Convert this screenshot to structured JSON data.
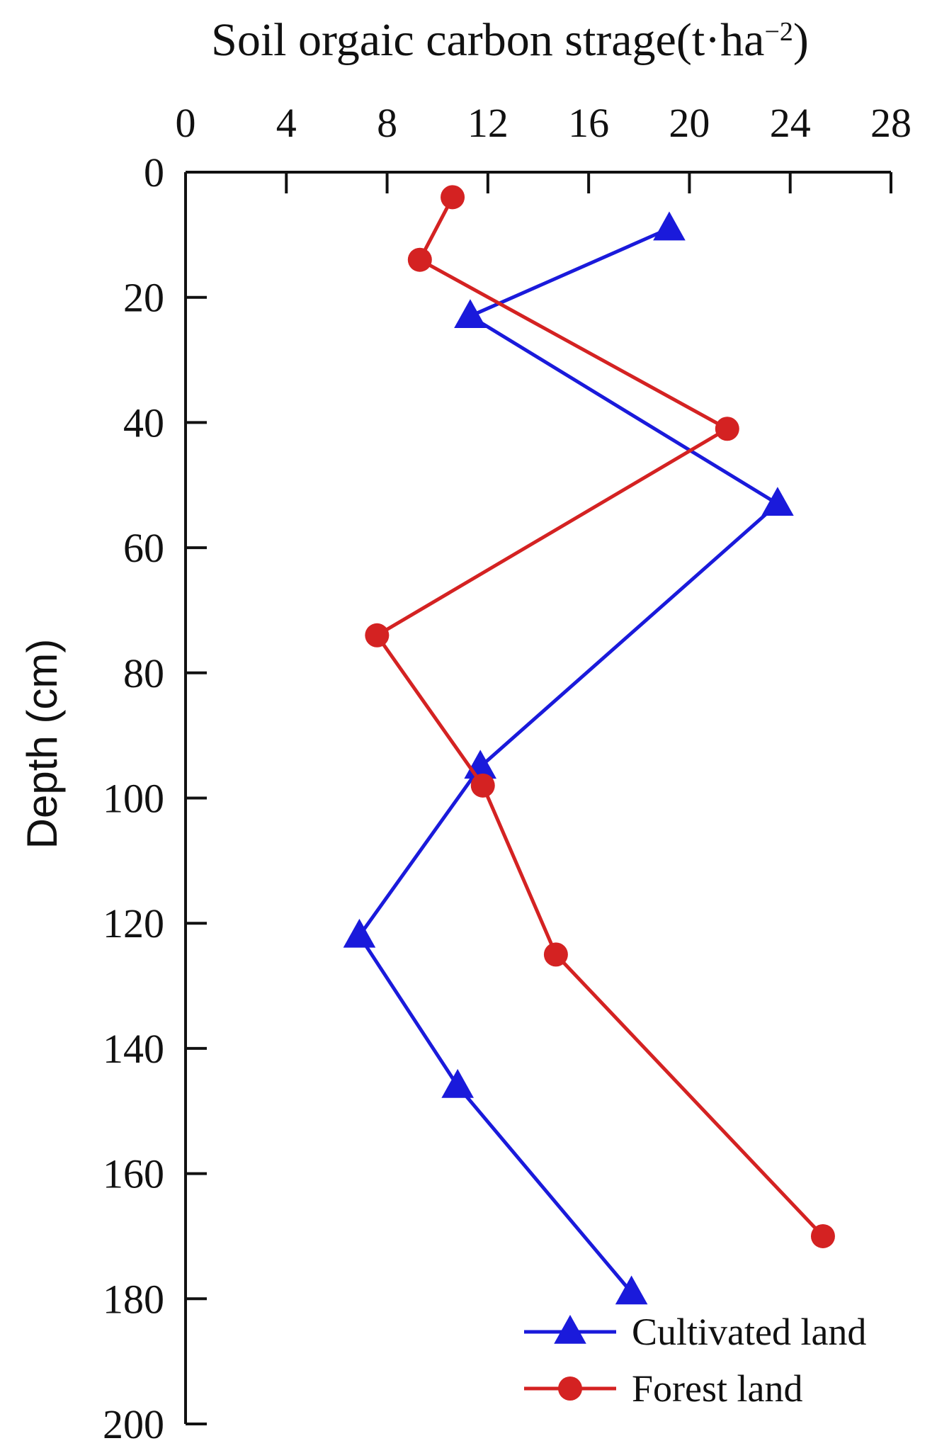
{
  "chart_data": {
    "type": "line",
    "title": "",
    "xlabel_main": "Soil orgaic carbon strage(t·ha",
    "xlabel_sup": "−2",
    "xlabel_end": ")",
    "ylabel": "Depth (cm)",
    "xlim": [
      0,
      28
    ],
    "ylim": [
      0,
      200
    ],
    "x_ticks": [
      0,
      4,
      8,
      12,
      16,
      20,
      24,
      28
    ],
    "y_ticks": [
      0,
      20,
      40,
      60,
      80,
      100,
      120,
      140,
      160,
      180,
      200
    ],
    "y_inverted": true,
    "x_axis_position": "top",
    "grid": false,
    "legend_position": "bottom-right",
    "series": [
      {
        "name": "Cultivated land",
        "color": "#1a1adb",
        "marker": "triangle",
        "points": [
          {
            "x": 19.2,
            "y": 9
          },
          {
            "x": 11.3,
            "y": 23
          },
          {
            "x": 23.5,
            "y": 53
          },
          {
            "x": 11.7,
            "y": 95
          },
          {
            "x": 6.9,
            "y": 122
          },
          {
            "x": 10.8,
            "y": 146
          },
          {
            "x": 17.7,
            "y": 179
          }
        ]
      },
      {
        "name": "Forest land",
        "color": "#d42222",
        "marker": "circle",
        "points": [
          {
            "x": 10.6,
            "y": 4
          },
          {
            "x": 9.3,
            "y": 14
          },
          {
            "x": 21.5,
            "y": 41
          },
          {
            "x": 7.6,
            "y": 74
          },
          {
            "x": 11.8,
            "y": 98
          },
          {
            "x": 14.7,
            "y": 125
          },
          {
            "x": 25.3,
            "y": 170
          }
        ]
      }
    ]
  }
}
